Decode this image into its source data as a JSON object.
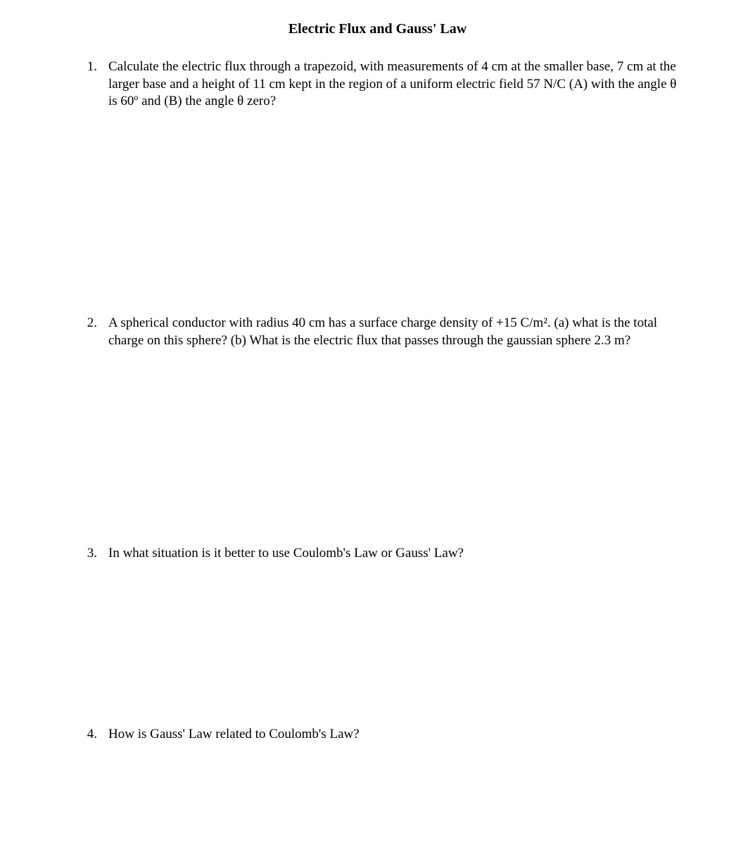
{
  "title": "Electric Flux and Gauss' Law",
  "questions": [
    {
      "num": "1.",
      "text": "Calculate the electric flux through a trapezoid, with measurements of 4 cm at the smaller base, 7 cm at the larger base and a height of 11 cm kept in the region of a uniform electric field 57 N/C (A) with the angle θ is 60º and (B) the angle θ zero?"
    },
    {
      "num": "2.",
      "text": "A spherical conductor with radius 40 cm has a surface charge density of +15 C/m². (a) what is the total charge on this sphere? (b) What is the electric flux that passes through the gaussian sphere 2.3 m?"
    },
    {
      "num": "3.",
      "text": "In what situation is it better to use Coulomb's Law or Gauss' Law?"
    },
    {
      "num": "4.",
      "text": "How is Gauss' Law related to Coulomb's Law?"
    }
  ],
  "colors": {
    "background": "#ffffff",
    "text": "#000000"
  },
  "typography": {
    "font_family": "Times New Roman",
    "title_fontsize": 20,
    "body_fontsize": 19,
    "title_weight": "bold"
  }
}
